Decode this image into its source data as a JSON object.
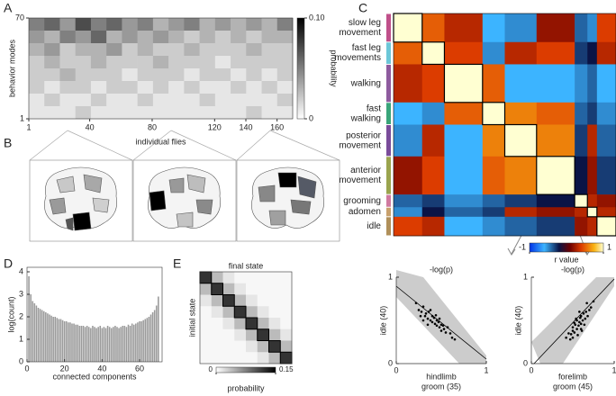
{
  "panel_letters": [
    "A",
    "B",
    "C",
    "D",
    "E"
  ],
  "chart_data": [
    {
      "type": "heatmap",
      "ylabel": "behavior modes",
      "xlabel": "individual flies",
      "ylim": [
        1,
        70
      ],
      "yticks": [
        1,
        70
      ],
      "xlim": [
        1,
        170
      ],
      "xticks": [
        1,
        40,
        80,
        120,
        140,
        160
      ],
      "values": [
        [
          0.05,
          0.06,
          0.04,
          0.07,
          0.05,
          0.06,
          0.04,
          0.05,
          0.03,
          0.04,
          0.05,
          0.03,
          0.04,
          0.03,
          0.04,
          0.03,
          0.05
        ],
        [
          0.04,
          0.03,
          0.05,
          0.04,
          0.06,
          0.03,
          0.04,
          0.03,
          0.04,
          0.03,
          0.02,
          0.03,
          0.02,
          0.03,
          0.02,
          0.03,
          0.03
        ],
        [
          0.03,
          0.04,
          0.02,
          0.03,
          0.03,
          0.04,
          0.02,
          0.03,
          0.02,
          0.02,
          0.03,
          0.02,
          0.02,
          0.02,
          0.03,
          0.02,
          0.02
        ],
        [
          0.02,
          0.03,
          0.02,
          0.02,
          0.03,
          0.02,
          0.02,
          0.02,
          0.03,
          0.02,
          0.02,
          0.02,
          0.01,
          0.02,
          0.02,
          0.02,
          0.02
        ],
        [
          0.02,
          0.02,
          0.03,
          0.02,
          0.02,
          0.02,
          0.01,
          0.02,
          0.02,
          0.02,
          0.01,
          0.02,
          0.02,
          0.01,
          0.02,
          0.01,
          0.02
        ],
        [
          0.02,
          0.01,
          0.02,
          0.02,
          0.01,
          0.02,
          0.02,
          0.01,
          0.02,
          0.01,
          0.02,
          0.01,
          0.01,
          0.02,
          0.01,
          0.02,
          0.01
        ],
        [
          0.01,
          0.02,
          0.01,
          0.01,
          0.02,
          0.01,
          0.01,
          0.02,
          0.01,
          0.01,
          0.01,
          0.02,
          0.01,
          0.01,
          0.01,
          0.01,
          0.02
        ],
        [
          0.01,
          0.01,
          0.01,
          0.02,
          0.01,
          0.01,
          0.01,
          0.01,
          0.01,
          0.01,
          0.01,
          0.01,
          0.01,
          0.01,
          0.02,
          0.01,
          0.01
        ]
      ],
      "colorbar": {
        "label": "probability",
        "lim": [
          0,
          0.1
        ],
        "ticks": [
          {
            "value": 0.1,
            "label": "0.10"
          },
          0
        ]
      }
    },
    {
      "type": "corr",
      "groups": [
        [
          "slow leg",
          "movement"
        ],
        [
          "fast leg",
          "movements"
        ],
        [
          "walking"
        ],
        [
          "fast",
          "walking"
        ],
        [
          "posterior",
          "movement"
        ],
        [
          "anterior",
          "movement"
        ],
        [
          "grooming"
        ],
        [
          "adomen"
        ],
        [
          "idle"
        ]
      ],
      "group_colors": [
        "#c0508a",
        "#6cc7d8",
        "#8e5b9e",
        "#3aa57a",
        "#7a4c9a",
        "#9aa44e",
        "#d07aa0",
        "#c8a06c",
        "#b0905a"
      ],
      "sizes": [
        9,
        7,
        12,
        7,
        10,
        12,
        4,
        3,
        6
      ],
      "values": [
        [
          1,
          0.5,
          0.3,
          -0.6,
          -0.5,
          0.2,
          -0.4,
          -0.5,
          0.4
        ],
        [
          0.5,
          1,
          0.4,
          -0.5,
          0.3,
          0.4,
          -0.3,
          -0.2,
          0.3
        ],
        [
          0.3,
          0.4,
          1,
          0.5,
          -0.6,
          -0.6,
          -0.5,
          -0.4,
          -0.6
        ],
        [
          -0.6,
          -0.5,
          0.5,
          1,
          0.6,
          0.5,
          -0.4,
          -0.3,
          -0.5
        ],
        [
          -0.5,
          0.3,
          -0.6,
          0.6,
          1,
          0.6,
          -0.3,
          0.3,
          -0.4
        ],
        [
          0.2,
          0.4,
          -0.6,
          0.5,
          0.6,
          1,
          -0.2,
          0.2,
          -0.3
        ],
        [
          -0.4,
          -0.3,
          -0.5,
          -0.4,
          -0.3,
          -0.2,
          1,
          0.3,
          0.2
        ],
        [
          -0.5,
          -0.2,
          -0.4,
          -0.3,
          0.3,
          0.2,
          0.3,
          1,
          0.3
        ],
        [
          0.4,
          0.3,
          -0.6,
          -0.5,
          -0.4,
          -0.3,
          0.2,
          0.3,
          1
        ]
      ],
      "colorbar": {
        "label": "r value",
        "lim": [
          -1,
          1
        ],
        "ticks": [
          -1,
          1
        ]
      }
    },
    {
      "type": "bar",
      "ylabel": "log(count)",
      "xlabel": "connected components",
      "color": "#9a9a9a",
      "ylim": [
        0,
        4.2
      ],
      "yticks": [
        0,
        1,
        2,
        3,
        4
      ],
      "xlim": [
        0,
        72
      ],
      "xticks": [
        0,
        20,
        40,
        60
      ],
      "x": [
        1,
        2,
        3,
        4,
        5,
        6,
        7,
        8,
        9,
        10,
        11,
        12,
        13,
        14,
        15,
        16,
        17,
        18,
        19,
        20,
        21,
        22,
        23,
        24,
        25,
        26,
        27,
        28,
        29,
        30,
        31,
        32,
        33,
        34,
        35,
        36,
        37,
        38,
        39,
        40,
        41,
        42,
        43,
        44,
        45,
        46,
        47,
        48,
        49,
        50,
        51,
        52,
        53,
        54,
        55,
        56,
        57,
        58,
        59,
        60,
        61,
        62,
        63,
        64,
        65,
        66,
        67,
        68,
        69,
        70
      ],
      "values": [
        3.8,
        3.0,
        2.7,
        2.6,
        2.5,
        2.4,
        2.35,
        2.3,
        2.25,
        2.2,
        2.15,
        2.1,
        2.05,
        2.0,
        2.0,
        1.95,
        1.9,
        1.9,
        1.85,
        1.8,
        1.8,
        1.75,
        1.75,
        1.7,
        1.7,
        1.65,
        1.65,
        1.6,
        1.6,
        1.6,
        1.55,
        1.6,
        1.55,
        1.5,
        1.6,
        1.55,
        1.5,
        1.55,
        1.6,
        1.5,
        1.55,
        1.5,
        1.6,
        1.55,
        1.5,
        1.55,
        1.6,
        1.55,
        1.5,
        1.55,
        1.6,
        1.6,
        1.55,
        1.65,
        1.6,
        1.7,
        1.65,
        1.7,
        1.75,
        1.8,
        1.8,
        1.85,
        1.9,
        1.95,
        2.0,
        2.1,
        2.2,
        2.3,
        2.5,
        2.9
      ]
    },
    {
      "type": "heatmap",
      "title": "final state",
      "ylabel": "initial state",
      "values": [
        [
          0.12,
          0.04,
          0.015,
          0.005,
          0.005,
          0.005,
          0.005,
          0.005
        ],
        [
          0.04,
          0.12,
          0.04,
          0.015,
          0.005,
          0.005,
          0.005,
          0.005
        ],
        [
          0.015,
          0.04,
          0.12,
          0.04,
          0.015,
          0.005,
          0.005,
          0.005
        ],
        [
          0.005,
          0.015,
          0.04,
          0.12,
          0.04,
          0.015,
          0.005,
          0.005
        ],
        [
          0.005,
          0.005,
          0.015,
          0.04,
          0.12,
          0.04,
          0.015,
          0.005
        ],
        [
          0.005,
          0.005,
          0.005,
          0.015,
          0.04,
          0.12,
          0.04,
          0.015
        ],
        [
          0.005,
          0.005,
          0.005,
          0.005,
          0.015,
          0.04,
          0.12,
          0.04
        ],
        [
          0.005,
          0.005,
          0.005,
          0.005,
          0.005,
          0.015,
          0.04,
          0.12
        ]
      ],
      "colorbar": {
        "label": "probability",
        "lim": [
          0,
          0.15
        ],
        "ticks": [
          0,
          0.15
        ]
      }
    },
    {
      "type": "scatter",
      "title": "-log(p)",
      "ylabel": "idle (40)",
      "xlabel": [
        "hindlimb",
        "groom (35)"
      ],
      "xlim": [
        0,
        1
      ],
      "ylim": [
        0,
        1
      ],
      "xticks": [
        0,
        1
      ],
      "yticks": [
        0,
        1
      ],
      "x": [
        0.22,
        0.25,
        0.28,
        0.3,
        0.32,
        0.33,
        0.35,
        0.36,
        0.38,
        0.4,
        0.4,
        0.42,
        0.43,
        0.45,
        0.45,
        0.47,
        0.48,
        0.5,
        0.5,
        0.52,
        0.53,
        0.55,
        0.57,
        0.6,
        0.62,
        0.3,
        0.38,
        0.44,
        0.35,
        0.27,
        0.65,
        0.48
      ],
      "y": [
        0.7,
        0.62,
        0.6,
        0.66,
        0.55,
        0.58,
        0.52,
        0.6,
        0.5,
        0.55,
        0.48,
        0.53,
        0.46,
        0.5,
        0.44,
        0.48,
        0.42,
        0.45,
        0.38,
        0.44,
        0.4,
        0.36,
        0.42,
        0.35,
        0.3,
        0.5,
        0.62,
        0.56,
        0.45,
        0.55,
        0.28,
        0.52
      ]
    },
    {
      "type": "scatter",
      "title": "-log(p)",
      "ylabel": "idle (40)",
      "xlabel": [
        "forelimb",
        "groom (45)"
      ],
      "xlim": [
        0,
        1
      ],
      "ylim": [
        0,
        1
      ],
      "xticks": [
        0,
        1
      ],
      "yticks": [
        0,
        1
      ],
      "x": [
        0.42,
        0.45,
        0.48,
        0.5,
        0.5,
        0.52,
        0.53,
        0.55,
        0.55,
        0.57,
        0.58,
        0.6,
        0.6,
        0.62,
        0.63,
        0.65,
        0.66,
        0.68,
        0.7,
        0.72,
        0.5,
        0.56,
        0.6,
        0.64,
        0.47,
        0.54,
        0.67,
        0.58,
        0.52,
        0.75,
        0.61,
        0.59
      ],
      "y": [
        0.3,
        0.35,
        0.34,
        0.38,
        0.42,
        0.36,
        0.45,
        0.4,
        0.5,
        0.44,
        0.48,
        0.46,
        0.55,
        0.5,
        0.58,
        0.52,
        0.6,
        0.55,
        0.62,
        0.65,
        0.3,
        0.33,
        0.4,
        0.45,
        0.28,
        0.52,
        0.7,
        0.6,
        0.47,
        0.72,
        0.38,
        0.53
      ]
    }
  ]
}
